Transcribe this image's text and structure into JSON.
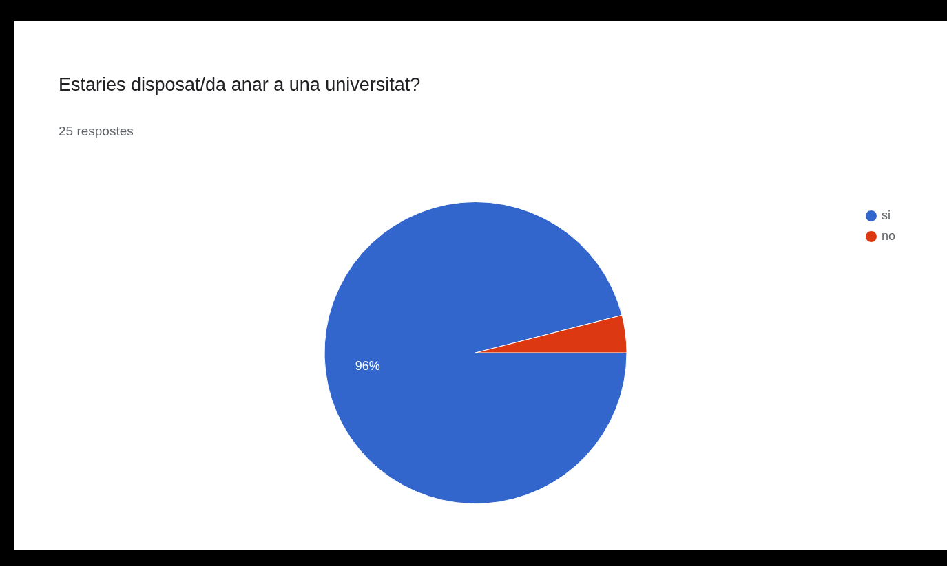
{
  "chart_data": {
    "type": "pie",
    "title": "Estaries disposat/da anar a una universitat?",
    "subtitle": "25 respostes",
    "categories": [
      "si",
      "no"
    ],
    "values": [
      96,
      4
    ],
    "colors": [
      "#3366cc",
      "#dc3912"
    ],
    "value_labels": [
      "96%",
      null
    ],
    "legend": "top right"
  }
}
